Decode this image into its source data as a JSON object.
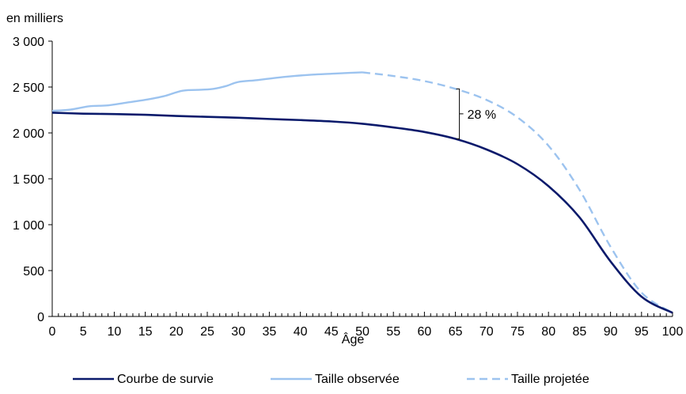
{
  "chart_data": {
    "type": "line",
    "xlabel": "Âge",
    "ylabel": "en milliers",
    "xlim": [
      0,
      100
    ],
    "ylim": [
      0,
      3000
    ],
    "x_ticks": [
      0,
      5,
      10,
      15,
      20,
      25,
      30,
      35,
      40,
      45,
      50,
      55,
      60,
      65,
      70,
      75,
      80,
      85,
      90,
      95,
      100
    ],
    "y_ticks": [
      0,
      500,
      1000,
      1500,
      2000,
      2500,
      3000
    ],
    "x_tick_labels": [
      "0",
      "5",
      "10",
      "15",
      "20",
      "25",
      "30",
      "35",
      "40",
      "45",
      "50",
      "55",
      "60",
      "65",
      "70",
      "75",
      "80",
      "85",
      "90",
      "95",
      "100"
    ],
    "y_tick_labels": [
      "0",
      "500",
      "1 000",
      "1 500",
      "2 000",
      "2 500",
      "3 000"
    ],
    "grid": false,
    "legend_position": "bottom",
    "series": [
      {
        "name": "Courbe de survie",
        "color": "#0a1a6b",
        "style": "solid",
        "x": [
          0,
          5,
          10,
          15,
          20,
          25,
          30,
          35,
          40,
          45,
          50,
          55,
          60,
          65,
          70,
          75,
          80,
          85,
          90,
          95,
          100
        ],
        "values": [
          2220,
          2210,
          2205,
          2198,
          2185,
          2175,
          2165,
          2152,
          2140,
          2125,
          2100,
          2060,
          2010,
          1935,
          1820,
          1660,
          1420,
          1080,
          600,
          215,
          40
        ]
      },
      {
        "name": "Taille observée",
        "color": "#9cc3ef",
        "style": "solid",
        "x": [
          0,
          3,
          6,
          9,
          12,
          15,
          18,
          21,
          24,
          26,
          28,
          30,
          33,
          36,
          39,
          42,
          45,
          48,
          50
        ],
        "values": [
          2240,
          2255,
          2290,
          2300,
          2330,
          2360,
          2400,
          2460,
          2470,
          2480,
          2510,
          2555,
          2575,
          2600,
          2620,
          2635,
          2645,
          2655,
          2660
        ]
      },
      {
        "name": "Taille projetée",
        "color": "#9cc3ef",
        "style": "dashed",
        "x": [
          50,
          55,
          60,
          65,
          70,
          75,
          80,
          85,
          90,
          95,
          100
        ],
        "values": [
          2660,
          2620,
          2565,
          2480,
          2360,
          2170,
          1860,
          1380,
          760,
          260,
          40
        ]
      }
    ],
    "annotations": [
      {
        "text": "28 %",
        "x": 65,
        "y_from": 1935,
        "y_to": 2480
      }
    ]
  }
}
